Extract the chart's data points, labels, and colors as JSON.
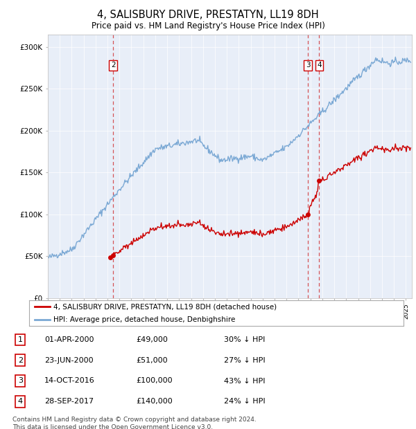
{
  "title": "4, SALISBURY DRIVE, PRESTATYN, LL19 8DH",
  "subtitle": "Price paid vs. HM Land Registry's House Price Index (HPI)",
  "sale_dates_decimal": [
    2000.25,
    2000.48,
    2016.79,
    2017.74
  ],
  "sale_prices": [
    49000,
    51000,
    100000,
    140000
  ],
  "sale_labels": [
    "1",
    "2",
    "3",
    "4"
  ],
  "vline_indices": [
    1,
    2,
    3
  ],
  "legend_entries": [
    "4, SALISBURY DRIVE, PRESTATYN, LL19 8DH (detached house)",
    "HPI: Average price, detached house, Denbighshire"
  ],
  "sale_color": "#cc0000",
  "hpi_color": "#7aa8d4",
  "table_rows": [
    [
      "1",
      "01-APR-2000",
      "£49,000",
      "30% ↓ HPI"
    ],
    [
      "2",
      "23-JUN-2000",
      "£51,000",
      "27% ↓ HPI"
    ],
    [
      "3",
      "14-OCT-2016",
      "£100,000",
      "43% ↓ HPI"
    ],
    [
      "4",
      "28-SEP-2017",
      "£140,000",
      "24% ↓ HPI"
    ]
  ],
  "footer": "Contains HM Land Registry data © Crown copyright and database right 2024.\nThis data is licensed under the Open Government Licence v3.0.",
  "ylim": [
    0,
    315000
  ],
  "yticks": [
    0,
    50000,
    100000,
    150000,
    200000,
    250000,
    300000
  ],
  "ytick_labels": [
    "£0",
    "£50K",
    "£100K",
    "£150K",
    "£200K",
    "£250K",
    "£300K"
  ],
  "xlim": [
    1995,
    2025.5
  ],
  "background_color": "#e8eef8"
}
